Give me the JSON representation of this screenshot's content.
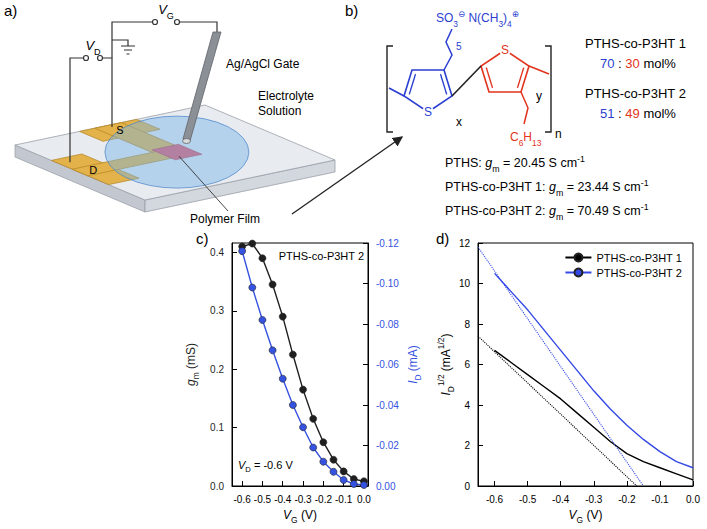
{
  "schematic": {
    "letter": "a)",
    "gate_voltage": [
      {
        "text": "V",
        "style": "italic"
      },
      {
        "text": "G",
        "style": "sub"
      }
    ],
    "drain_voltage": [
      {
        "text": "V",
        "style": "italic"
      },
      {
        "text": "D",
        "style": "sub"
      }
    ],
    "source": "S",
    "drain": "D",
    "gate": "Ag/AgCl Gate",
    "electrolyte": "Electrolyte Solution",
    "film": "Polymer Film"
  },
  "structure": {
    "letter": "b)",
    "sulfonate": [
      {
        "text": "SO"
      },
      {
        "text": "3",
        "style": "sub"
      },
      {
        "text": "⊖",
        "style": "sup"
      }
    ],
    "cation": [
      {
        "text": " N(CH"
      },
      {
        "text": "3",
        "style": "sub"
      },
      {
        "text": ")"
      },
      {
        "text": "4",
        "style": "sub"
      },
      {
        "text": "⊕",
        "style": "sup"
      }
    ],
    "spacer_repeat": "5",
    "ring_atom": "S",
    "repeat_labels": [
      "x",
      "y",
      "n"
    ],
    "side_chain": [
      {
        "text": "C"
      },
      {
        "text": "6",
        "style": "sub"
      },
      {
        "text": "H"
      },
      {
        "text": "13",
        "style": "sub"
      }
    ],
    "copolymers": [
      {
        "name": "PTHS-co-P3HT 1",
        "ratio": [
          70,
          30
        ],
        "separator": ":",
        "unit": "mol%"
      },
      {
        "name": "PTHS-co-P3HT 2",
        "ratio": [
          51,
          49
        ],
        "separator": ":",
        "unit": "mol%"
      }
    ],
    "transconductance": [
      {
        "label": "PTHS:",
        "symbol": [
          {
            "text": "g",
            "style": "italic"
          },
          {
            "text": "m",
            "style": "sub"
          }
        ],
        "relation": "=",
        "value": 20.45,
        "unit": [
          {
            "text": "S cm"
          },
          {
            "text": "-1",
            "style": "sup"
          }
        ]
      },
      {
        "label": "PTHS-co-P3HT 1:",
        "symbol": [
          {
            "text": "g",
            "style": "italic"
          },
          {
            "text": "m",
            "style": "sub"
          }
        ],
        "relation": "=",
        "value": 23.44,
        "unit": [
          {
            "text": "S cm"
          },
          {
            "text": "-1",
            "style": "sup"
          }
        ]
      },
      {
        "label": "PTHS-co-P3HT 2:",
        "symbol": [
          {
            "text": "g",
            "style": "italic"
          },
          {
            "text": "m",
            "style": "sub"
          }
        ],
        "relation": "=",
        "value": 70.49,
        "unit": [
          {
            "text": "S cm"
          },
          {
            "text": "-1",
            "style": "sup"
          }
        ]
      }
    ]
  },
  "chart_data": [
    {
      "type": "line",
      "letter": "c)",
      "annotations": [
        [
          {
            "text": "PTHS-co-P3HT 2"
          }
        ],
        [
          {
            "text": "V",
            "style": "italic"
          },
          {
            "text": "D",
            "style": "sub"
          },
          {
            "text": " = -0.6 V"
          }
        ]
      ],
      "xlabel": [
        {
          "text": "V",
          "style": "italic"
        },
        {
          "text": "G",
          "style": "sub"
        },
        {
          "text": " (V)"
        }
      ],
      "ylabel": [
        {
          "text": "g",
          "style": "italic"
        },
        {
          "text": "m",
          "style": "sub"
        },
        {
          "text": " (mS)"
        }
      ],
      "y2label": [
        {
          "text": "I",
          "style": "italic"
        },
        {
          "text": "D",
          "style": "sub"
        },
        {
          "text": " (mA)"
        }
      ],
      "x": [
        -0.6,
        -0.55,
        -0.5,
        -0.45,
        -0.4,
        -0.35,
        -0.3,
        -0.25,
        -0.2,
        -0.15,
        -0.1,
        -0.05,
        0
      ],
      "xlim": [
        -0.65,
        0.02
      ],
      "xticks": [
        -0.6,
        -0.5,
        -0.4,
        -0.3,
        -0.2,
        -0.1,
        {
          "value": 0,
          "label": "0.0"
        }
      ],
      "ylim": [
        0,
        0.416
      ],
      "yticks": [
        {
          "value": 0,
          "label": "0.0"
        },
        0.1,
        0.2,
        0.3,
        0.4
      ],
      "y2lim": [
        0,
        -0.12
      ],
      "y2ticks": [
        {
          "value": 0,
          "label": "0.00"
        },
        -0.02,
        -0.04,
        -0.06,
        -0.08,
        {
          "value": -0.1,
          "label": "-0.10"
        },
        -0.12
      ],
      "grid": false,
      "series": [
        {
          "color": "#1f1f1f",
          "marker": "circle",
          "values": [
            0.41,
            0.415,
            0.39,
            0.345,
            0.29,
            0.225,
            0.165,
            0.115,
            0.075,
            0.045,
            0.025,
            0.012,
            0.008
          ]
        },
        {
          "color": "#3552e0",
          "marker": "circle",
          "axis": "y2",
          "values": [
            -0.116,
            -0.098,
            -0.082,
            -0.067,
            -0.053,
            -0.04,
            -0.029,
            -0.019,
            -0.012,
            -0.007,
            -0.003,
            -0.001,
            -0.0005
          ]
        }
      ]
    },
    {
      "type": "line",
      "letter": "d)",
      "xlabel": [
        {
          "text": "V",
          "style": "italic"
        },
        {
          "text": "G",
          "style": "sub"
        },
        {
          "text": " (V)"
        }
      ],
      "ylabel": [
        {
          "text": "I",
          "style": "italic"
        },
        {
          "text": "D",
          "style": "sub"
        },
        {
          "text": "1/2",
          "style": "sup"
        },
        {
          "text": " (mA"
        },
        {
          "text": "1/2",
          "style": "sup"
        },
        {
          "text": ")"
        }
      ],
      "x": [
        -0.6,
        -0.55,
        -0.5,
        -0.45,
        -0.4,
        -0.35,
        -0.3,
        -0.25,
        -0.2,
        -0.15,
        -0.1,
        -0.05,
        0
      ],
      "xlim": [
        -0.65,
        0
      ],
      "xticks": [
        -0.6,
        -0.5,
        -0.4,
        -0.3,
        -0.2,
        -0.1,
        {
          "value": 0,
          "label": "0.0"
        }
      ],
      "ylim": [
        0,
        12
      ],
      "yticks": [
        0,
        2,
        4,
        6,
        8,
        10,
        12
      ],
      "grid": false,
      "legend": "top-right",
      "series": [
        {
          "name": "PTHS-co-P3HT 1",
          "color": "#000000",
          "marker": "none",
          "line_style": "solid",
          "values": [
            6.7,
            6.1,
            5.5,
            4.9,
            4.3,
            3.6,
            2.9,
            2.2,
            1.6,
            1.2,
            0.9,
            0.6,
            0.3
          ]
        },
        {
          "name": "PTHS-co-P3HT 2",
          "color": "#3448e6",
          "marker": "none",
          "line_style": "solid",
          "values": [
            10.5,
            9.6,
            8.7,
            7.7,
            6.7,
            5.7,
            4.7,
            3.8,
            3.0,
            2.3,
            1.7,
            1.2,
            0.9
          ]
        },
        {
          "color": "#000000",
          "marker": "none",
          "line_style": "dotted",
          "x": [
            -0.65,
            -0.17
          ],
          "values": [
            7.4,
            0
          ]
        },
        {
          "color": "#3448e6",
          "marker": "none",
          "line_style": "dotted",
          "x": [
            -0.65,
            -0.15
          ],
          "values": [
            11.8,
            0
          ]
        }
      ]
    }
  ]
}
